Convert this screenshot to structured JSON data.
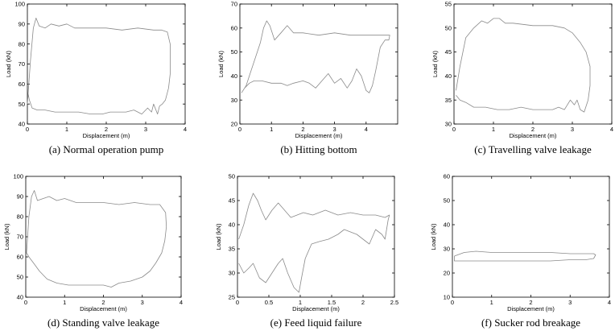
{
  "chart_data": [
    {
      "type": "line",
      "caption": "(a) Normal operation pump",
      "xlabel": "Displacement (m)",
      "ylabel": "Load (kN)",
      "xlim": [
        0,
        4
      ],
      "ylim": [
        40,
        100
      ],
      "xticks": [
        0,
        1,
        2,
        3,
        4
      ],
      "yticks": [
        40,
        50,
        60,
        70,
        80,
        90,
        100
      ],
      "series": [
        {
          "x": [
            0,
            0.08,
            0.15,
            0.22,
            0.3,
            0.45,
            0.6,
            0.8,
            1.0,
            1.2,
            1.6,
            2.0,
            2.4,
            2.8,
            3.2,
            3.4,
            3.55,
            3.62,
            3.62,
            3.58,
            3.5,
            3.42,
            3.35,
            3.3,
            3.2,
            3.15,
            3.05,
            2.9,
            2.7,
            2.5,
            2.3,
            2.1,
            1.9,
            1.6,
            1.3,
            1.0,
            0.7,
            0.45,
            0.25,
            0.12,
            0.05,
            0.02,
            0
          ],
          "y": [
            50,
            72,
            88,
            93,
            89,
            88,
            90,
            89,
            90,
            88,
            88,
            88,
            87,
            88,
            87,
            87,
            86,
            80,
            65,
            58,
            52,
            50,
            49,
            45,
            50,
            46,
            48,
            45,
            47,
            46,
            46,
            46,
            45,
            45,
            46,
            46,
            46,
            47,
            47,
            48,
            52,
            55,
            50
          ]
        }
      ]
    },
    {
      "type": "line",
      "caption": "(b) Hitting bottom",
      "xlabel": "Displacement (m)",
      "ylabel": "Load (kN)",
      "xlim": [
        0,
        5
      ],
      "ylim": [
        20,
        70
      ],
      "xticks": [
        0,
        1,
        2,
        3,
        4
      ],
      "yticks": [
        20,
        30,
        40,
        50,
        60,
        70
      ],
      "series": [
        {
          "x": [
            0.05,
            0.2,
            0.35,
            0.5,
            0.65,
            0.75,
            0.85,
            0.95,
            1.1,
            1.3,
            1.5,
            1.7,
            2.0,
            2.5,
            3.0,
            3.5,
            4.0,
            4.5,
            4.75,
            4.72,
            4.6,
            4.45,
            4.3,
            4.2,
            4.1,
            4.0,
            3.85,
            3.7,
            3.55,
            3.4,
            3.2,
            3.0,
            2.8,
            2.6,
            2.4,
            2.2,
            2.0,
            1.7,
            1.5,
            1.3,
            1.0,
            0.7,
            0.45,
            0.3,
            0.15,
            0.05
          ],
          "y": [
            33,
            36,
            42,
            48,
            54,
            60,
            63,
            61,
            55,
            58,
            61,
            58,
            58,
            57,
            58,
            57,
            57,
            57,
            57,
            55,
            55,
            52,
            42,
            36,
            33,
            34,
            40,
            43,
            38,
            35,
            39,
            37,
            41,
            38,
            35,
            37,
            38,
            37,
            36,
            37,
            37,
            38,
            38,
            37,
            35,
            33
          ]
        }
      ]
    },
    {
      "type": "line",
      "caption": "(c) Travelling valve leakage",
      "xlabel": "Displacement (m)",
      "ylabel": "Load (kN)",
      "xlim": [
        0,
        4
      ],
      "ylim": [
        30,
        55
      ],
      "xticks": [
        0,
        1,
        2,
        3,
        4
      ],
      "yticks": [
        30,
        35,
        40,
        45,
        50,
        55
      ],
      "series": [
        {
          "x": [
            0.05,
            0.15,
            0.3,
            0.5,
            0.7,
            0.85,
            1.0,
            1.15,
            1.3,
            1.5,
            2.0,
            2.5,
            2.8,
            3.0,
            3.2,
            3.35,
            3.45,
            3.45,
            3.4,
            3.3,
            3.2,
            3.12,
            3.05,
            2.95,
            2.8,
            2.65,
            2.5,
            2.3,
            2.0,
            1.7,
            1.4,
            1.1,
            0.8,
            0.5,
            0.3,
            0.15,
            0.05
          ],
          "y": [
            37,
            42,
            48,
            50,
            51.5,
            51,
            52,
            52,
            51,
            51,
            50.5,
            50.5,
            50,
            49,
            47,
            45,
            42,
            38,
            35,
            32.5,
            33,
            35,
            34,
            35,
            33,
            33.5,
            33,
            33,
            33,
            33.5,
            33,
            33,
            33.5,
            33.5,
            34.5,
            35,
            36
          ]
        }
      ]
    },
    {
      "type": "line",
      "caption": "(d) Standing valve leakage",
      "xlabel": "Displacement (m)",
      "ylabel": "Load (kN)",
      "xlim": [
        0,
        4
      ],
      "ylim": [
        40,
        100
      ],
      "xticks": [
        0,
        1,
        2,
        3,
        4
      ],
      "yticks": [
        40,
        50,
        60,
        70,
        80,
        90,
        100
      ],
      "series": [
        {
          "x": [
            0.02,
            0.08,
            0.15,
            0.22,
            0.3,
            0.45,
            0.6,
            0.8,
            1.0,
            1.3,
            1.6,
            2.0,
            2.4,
            2.8,
            3.2,
            3.45,
            3.6,
            3.62,
            3.58,
            3.5,
            3.35,
            3.2,
            3.0,
            2.7,
            2.4,
            2.2,
            2.0,
            1.7,
            1.4,
            1.1,
            0.8,
            0.55,
            0.35,
            0.2,
            0.08,
            0.02
          ],
          "y": [
            62,
            80,
            90,
            93,
            88,
            89,
            90,
            88,
            89,
            87,
            87,
            87,
            86,
            87,
            86,
            86,
            82,
            75,
            68,
            62,
            57,
            53,
            50,
            48,
            47,
            45,
            46,
            46,
            46,
            46,
            47,
            49,
            53,
            57,
            60,
            62
          ]
        }
      ]
    },
    {
      "type": "line",
      "caption": "(e) Feed liquid failure",
      "xlabel": "Displacement (m)",
      "ylabel": "Load (kN)",
      "xlim": [
        0,
        2.5
      ],
      "ylim": [
        25,
        50
      ],
      "xticks": [
        0,
        0.5,
        1,
        1.5,
        2,
        2.5
      ],
      "yticks": [
        25,
        30,
        35,
        40,
        45,
        50
      ],
      "series": [
        {
          "x": [
            0.02,
            0.1,
            0.18,
            0.25,
            0.32,
            0.38,
            0.45,
            0.55,
            0.65,
            0.75,
            0.85,
            0.95,
            1.05,
            1.2,
            1.4,
            1.6,
            1.8,
            2.0,
            2.2,
            2.35,
            2.42,
            2.4,
            2.35,
            2.3,
            2.2,
            2.1,
            2.0,
            1.9,
            1.8,
            1.7,
            1.6,
            1.45,
            1.3,
            1.18,
            1.08,
            1.02,
            0.98,
            0.9,
            0.8,
            0.72,
            0.65,
            0.55,
            0.45,
            0.35,
            0.25,
            0.18,
            0.1,
            0.02
          ],
          "y": [
            37,
            40,
            44,
            46.5,
            45,
            43,
            41,
            43,
            44.5,
            43,
            41.5,
            42,
            42.5,
            42,
            43,
            42,
            42.5,
            42,
            42,
            41.5,
            42,
            41,
            37,
            38,
            39,
            36,
            37,
            38,
            38.5,
            39,
            38,
            37,
            36.5,
            36,
            33,
            29,
            26,
            27,
            30,
            33,
            32,
            30,
            28,
            29,
            32,
            31,
            30,
            32
          ]
        }
      ]
    },
    {
      "type": "line",
      "caption": "(f) Sucker rod breakage",
      "xlabel": "Displacement (m)",
      "ylabel": "Load (kN)",
      "xlim": [
        0,
        4
      ],
      "ylim": [
        10,
        60
      ],
      "xticks": [
        0,
        1,
        2,
        3,
        4
      ],
      "yticks": [
        10,
        20,
        30,
        40,
        50,
        60
      ],
      "series": [
        {
          "x": [
            0.05,
            0.3,
            0.6,
            1.0,
            1.5,
            2.0,
            2.5,
            3.0,
            3.4,
            3.6,
            3.65,
            3.6,
            3.4,
            3.0,
            2.5,
            2.0,
            1.5,
            1.0,
            0.6,
            0.3,
            0.05,
            0.05
          ],
          "y": [
            27,
            28.5,
            29,
            28.5,
            28.5,
            28.5,
            28.5,
            28,
            28,
            28,
            27.5,
            26,
            25.5,
            25.5,
            25,
            25,
            25,
            25,
            25,
            25,
            25,
            27
          ]
        }
      ]
    }
  ]
}
